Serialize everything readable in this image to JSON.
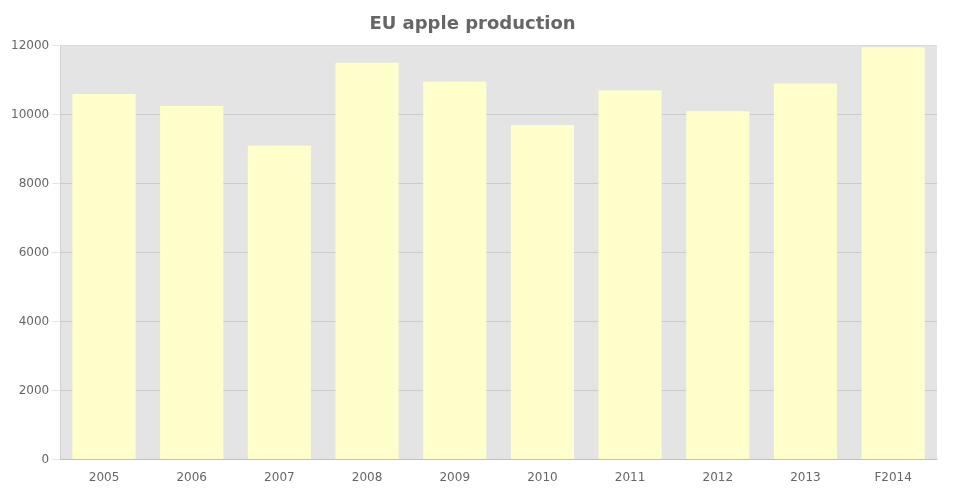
{
  "chart_data": {
    "type": "bar",
    "title": "EU apple production",
    "categories": [
      "2005",
      "2006",
      "2007",
      "2008",
      "2009",
      "2010",
      "2011",
      "2012",
      "2013",
      "F2014"
    ],
    "values": [
      10600,
      10250,
      9100,
      11500,
      10950,
      9700,
      10700,
      10100,
      10900,
      11950
    ],
    "color": "#ffffcc",
    "ylim": [
      0,
      12000
    ],
    "yticks": [
      0,
      2000,
      4000,
      6000,
      8000,
      10000,
      12000
    ],
    "grid": true
  }
}
